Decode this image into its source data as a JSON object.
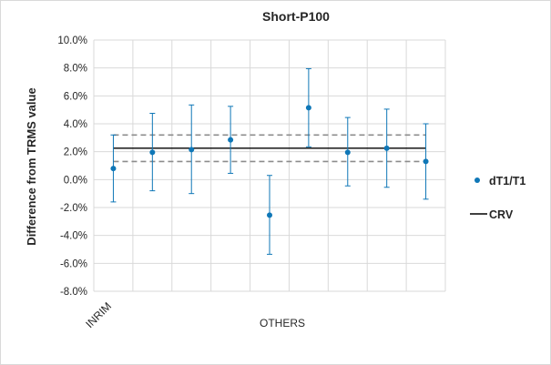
{
  "chart_data": {
    "type": "scatter",
    "title": "Short-P100",
    "ylabel": "Difference from TRMS value",
    "xlabel": "OTHERS",
    "first_category_label": "INRIM",
    "ylim": [
      -8.0,
      10.0
    ],
    "y_ticks": [
      "10.0%",
      "8.0%",
      "6.0%",
      "4.0%",
      "2.0%",
      "0.0%",
      "-2.0%",
      "-4.0%",
      "-6.0%",
      "-8.0%"
    ],
    "y_tick_values": [
      10,
      8,
      6,
      4,
      2,
      0,
      -2,
      -4,
      -6,
      -8
    ],
    "grid": true,
    "series": [
      {
        "name": "dT1/T1",
        "color": "#0f77b7",
        "x": [
          1,
          2,
          3,
          4,
          5,
          6,
          7,
          8,
          9
        ],
        "values": [
          0.8,
          1.95,
          2.15,
          2.85,
          -2.55,
          5.15,
          1.95,
          2.25,
          1.3
        ],
        "err_upper": [
          3.2,
          4.75,
          5.35,
          5.25,
          0.3,
          7.95,
          4.45,
          5.05,
          4.0
        ],
        "err_lower": [
          -1.6,
          -0.8,
          -1.0,
          0.45,
          -5.35,
          2.35,
          -0.45,
          -0.55,
          -1.4
        ]
      }
    ],
    "crv": {
      "name": "CRV",
      "value": 2.25,
      "upper": 3.2,
      "lower": 1.3,
      "color": "#000000",
      "band_color": "#8c8c8c"
    },
    "legend_placement": "right"
  }
}
